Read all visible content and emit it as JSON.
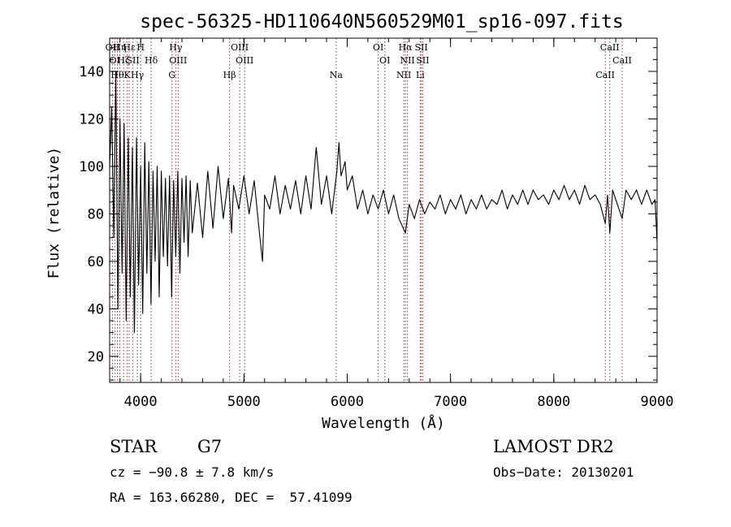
{
  "chart_data": {
    "type": "line",
    "title": "spec-56325-HD110640N560529M01_sp16-097.fits",
    "xlabel": "Wavelength (Å)",
    "ylabel": "Flux (relative)",
    "xlim": [
      3700,
      9000
    ],
    "ylim": [
      9,
      154
    ],
    "xticks": [
      4000,
      5000,
      6000,
      7000,
      8000,
      9000
    ],
    "yticks": [
      20,
      40,
      60,
      80,
      100,
      120,
      140
    ],
    "grid": false,
    "line_color": "#000000",
    "marker_color": "#b03030",
    "series": [
      {
        "points": [
          [
            3700,
            100
          ],
          [
            3720,
            125
          ],
          [
            3740,
            70
          ],
          [
            3760,
            140
          ],
          [
            3780,
            40
          ],
          [
            3800,
            120
          ],
          [
            3820,
            55
          ],
          [
            3840,
            118
          ],
          [
            3860,
            35
          ],
          [
            3880,
            112
          ],
          [
            3900,
            45
          ],
          [
            3920,
            108
          ],
          [
            3940,
            30
          ],
          [
            3960,
            112
          ],
          [
            3980,
            50
          ],
          [
            4000,
            100
          ],
          [
            4020,
            38
          ],
          [
            4040,
            110
          ],
          [
            4060,
            55
          ],
          [
            4080,
            102
          ],
          [
            4100,
            42
          ],
          [
            4120,
            98
          ],
          [
            4140,
            60
          ],
          [
            4160,
            100
          ],
          [
            4180,
            45
          ],
          [
            4200,
            98
          ],
          [
            4220,
            62
          ],
          [
            4240,
            95
          ],
          [
            4260,
            58
          ],
          [
            4280,
            96
          ],
          [
            4300,
            45
          ],
          [
            4320,
            94
          ],
          [
            4340,
            62
          ],
          [
            4360,
            98
          ],
          [
            4380,
            55
          ],
          [
            4400,
            95
          ],
          [
            4420,
            68
          ],
          [
            4440,
            96
          ],
          [
            4460,
            62
          ],
          [
            4480,
            94
          ],
          [
            4500,
            72
          ],
          [
            4550,
            93
          ],
          [
            4600,
            70
          ],
          [
            4650,
            98
          ],
          [
            4700,
            74
          ],
          [
            4750,
            100
          ],
          [
            4800,
            78
          ],
          [
            4850,
            95
          ],
          [
            4880,
            72
          ],
          [
            4900,
            92
          ],
          [
            4950,
            82
          ],
          [
            5000,
            96
          ],
          [
            5050,
            80
          ],
          [
            5100,
            94
          ],
          [
            5150,
            72
          ],
          [
            5180,
            60
          ],
          [
            5200,
            88
          ],
          [
            5250,
            82
          ],
          [
            5300,
            96
          ],
          [
            5350,
            80
          ],
          [
            5400,
            92
          ],
          [
            5450,
            82
          ],
          [
            5500,
            94
          ],
          [
            5550,
            80
          ],
          [
            5600,
            96
          ],
          [
            5650,
            82
          ],
          [
            5700,
            108
          ],
          [
            5750,
            84
          ],
          [
            5800,
            96
          ],
          [
            5850,
            80
          ],
          [
            5900,
            98
          ],
          [
            5920,
            110
          ],
          [
            5940,
            96
          ],
          [
            5980,
            102
          ],
          [
            6000,
            90
          ],
          [
            6050,
            96
          ],
          [
            6100,
            82
          ],
          [
            6150,
            90
          ],
          [
            6200,
            80
          ],
          [
            6250,
            88
          ],
          [
            6300,
            82
          ],
          [
            6350,
            90
          ],
          [
            6400,
            80
          ],
          [
            6450,
            88
          ],
          [
            6500,
            78
          ],
          [
            6563,
            72
          ],
          [
            6600,
            84
          ],
          [
            6650,
            78
          ],
          [
            6700,
            86
          ],
          [
            6750,
            80
          ],
          [
            6800,
            85
          ],
          [
            6850,
            82
          ],
          [
            6900,
            88
          ],
          [
            6950,
            80
          ],
          [
            7000,
            86
          ],
          [
            7050,
            82
          ],
          [
            7100,
            88
          ],
          [
            7150,
            80
          ],
          [
            7200,
            86
          ],
          [
            7250,
            82
          ],
          [
            7300,
            88
          ],
          [
            7350,
            82
          ],
          [
            7400,
            86
          ],
          [
            7450,
            84
          ],
          [
            7500,
            90
          ],
          [
            7550,
            82
          ],
          [
            7600,
            88
          ],
          [
            7650,
            84
          ],
          [
            7700,
            90
          ],
          [
            7750,
            84
          ],
          [
            7800,
            90
          ],
          [
            7850,
            86
          ],
          [
            7900,
            88
          ],
          [
            7950,
            84
          ],
          [
            8000,
            90
          ],
          [
            8050,
            86
          ],
          [
            8100,
            92
          ],
          [
            8150,
            86
          ],
          [
            8200,
            90
          ],
          [
            8250,
            84
          ],
          [
            8300,
            92
          ],
          [
            8350,
            86
          ],
          [
            8400,
            88
          ],
          [
            8450,
            84
          ],
          [
            8498,
            76
          ],
          [
            8520,
            88
          ],
          [
            8542,
            72
          ],
          [
            8570,
            90
          ],
          [
            8600,
            86
          ],
          [
            8662,
            78
          ],
          [
            8700,
            90
          ],
          [
            8750,
            86
          ],
          [
            8800,
            90
          ],
          [
            8850,
            84
          ],
          [
            8900,
            90
          ],
          [
            8950,
            84
          ],
          [
            8980,
            86
          ],
          [
            9000,
            68
          ]
        ]
      }
    ],
    "lines": [
      {
        "x": 3727,
        "labels": [
          "OII"
        ]
      },
      {
        "x": 3750,
        "labels": [
          "OI"
        ]
      },
      {
        "x": 3775,
        "labels": [
          "Hθ"
        ]
      },
      {
        "x": 3798,
        "labels": [
          "Hη"
        ]
      },
      {
        "x": 3835,
        "labels": [
          "Hζ"
        ]
      },
      {
        "x": 3870,
        "labels": [
          "K"
        ]
      },
      {
        "x": 3889,
        "labels": [
          "Hε"
        ]
      },
      {
        "x": 3925,
        "labels": [
          "SII"
        ]
      },
      {
        "x": 3968,
        "labels": [
          "Hγ"
        ]
      },
      {
        "x": 4000,
        "labels": [
          "H"
        ]
      },
      {
        "x": 4102,
        "labels": [
          "Hδ"
        ]
      },
      {
        "x": 4304,
        "labels": [
          "G"
        ]
      },
      {
        "x": 4340,
        "labels": [
          "Hγ"
        ]
      },
      {
        "x": 4363,
        "labels": [
          "OIII"
        ]
      },
      {
        "x": 4861,
        "labels": [
          "Hβ"
        ]
      },
      {
        "x": 4959,
        "labels": [
          "OIII"
        ]
      },
      {
        "x": 5007,
        "labels": [
          "OIII"
        ]
      },
      {
        "x": 5893,
        "labels": [
          "Na"
        ]
      },
      {
        "x": 6300,
        "labels": [
          "OI"
        ]
      },
      {
        "x": 6364,
        "labels": [
          "OI"
        ]
      },
      {
        "x": 6548,
        "labels": [
          "NII"
        ]
      },
      {
        "x": 6563,
        "labels": [
          "Hα"
        ]
      },
      {
        "x": 6583,
        "labels": [
          "NII"
        ]
      },
      {
        "x": 6707,
        "labels": [
          "Li"
        ]
      },
      {
        "x": 6717,
        "labels": [
          "SII"
        ]
      },
      {
        "x": 6731,
        "labels": [
          "SII"
        ]
      },
      {
        "x": 8498,
        "labels": [
          "CaII"
        ]
      },
      {
        "x": 8542,
        "labels": [
          "CaII"
        ]
      },
      {
        "x": 8662,
        "labels": [
          "CaII"
        ]
      }
    ]
  },
  "info": {
    "class_label": "STAR",
    "subclass": "G7",
    "survey": "LAMOST DR2",
    "cz": "cz = −90.8 ± 7.8 km/s",
    "obs_date": "Obs−Date: 20130201",
    "radec": "RA = 163.66280, DEC =  57.41099"
  }
}
